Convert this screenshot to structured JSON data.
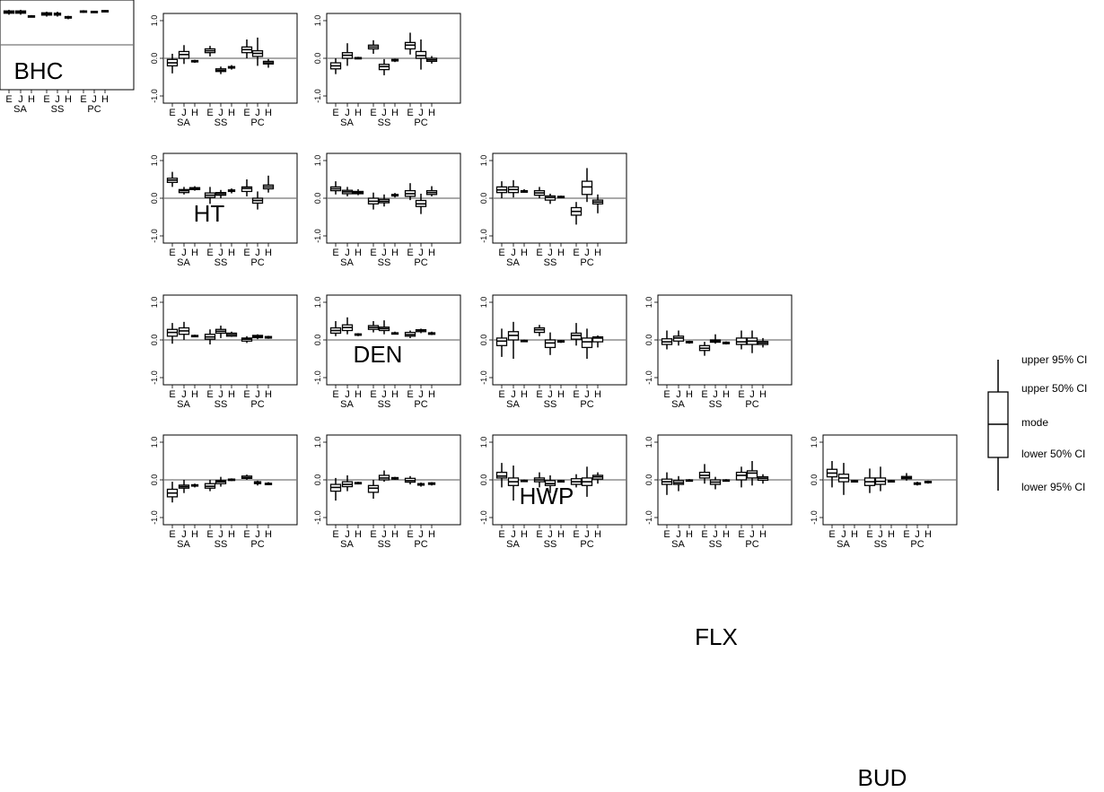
{
  "figure": {
    "traits": [
      "BHC",
      "HT",
      "DEN",
      "HWP",
      "FLX",
      "BUD"
    ],
    "y_tick_labels": [
      "1.0",
      "0.0",
      "-1.0"
    ],
    "class_labels": [
      "E",
      "J",
      "H"
    ],
    "group_labels": [
      "SA",
      "SS",
      "PC"
    ]
  },
  "legend": {
    "labels": [
      "upper 95% CI",
      "upper 50% CI",
      "mode",
      "lower 50% CI",
      "lower 95% CI"
    ]
  },
  "chart_data": {
    "type": "box",
    "title": "",
    "xlabel": "",
    "ylabel": "",
    "ylim": [
      -1.0,
      1.0
    ],
    "yticks": [
      1.0,
      0.0,
      -1.0
    ],
    "reference_line": 0,
    "grid": false,
    "legend_position": "right",
    "categories": [
      "SA E",
      "SA J",
      "SA H",
      "SS E",
      "SS J",
      "SS H",
      "PC E",
      "PC J",
      "PC H"
    ],
    "stat_order": [
      "lower 95% CI",
      "lower 50% CI",
      "mode",
      "upper 50% CI",
      "upper 95% CI"
    ],
    "panels": [
      {
        "row": "BHC",
        "col": "BHC",
        "stats": [
          [
            0.8,
            0.84,
            0.87,
            0.9,
            0.93
          ],
          [
            0.8,
            0.84,
            0.87,
            0.9,
            0.93
          ],
          [
            0.73,
            0.75,
            0.76,
            0.77,
            0.79
          ],
          [
            0.75,
            0.79,
            0.82,
            0.85,
            0.88
          ],
          [
            0.75,
            0.79,
            0.82,
            0.84,
            0.88
          ],
          [
            0.68,
            0.71,
            0.73,
            0.75,
            0.77
          ],
          [
            0.85,
            0.87,
            0.89,
            0.9,
            0.92
          ],
          [
            0.85,
            0.87,
            0.88,
            0.89,
            0.9
          ],
          [
            0.87,
            0.89,
            0.9,
            0.91,
            0.92
          ]
        ]
      },
      {
        "row": "BHC",
        "col": "HT",
        "stats": [
          [
            -0.4,
            -0.2,
            -0.12,
            -0.03,
            0.12
          ],
          [
            -0.15,
            0.0,
            0.1,
            0.18,
            0.35
          ],
          [
            -0.12,
            -0.09,
            -0.08,
            -0.06,
            -0.04
          ],
          [
            0.05,
            0.15,
            0.2,
            0.25,
            0.33
          ],
          [
            -0.42,
            -0.35,
            -0.32,
            -0.28,
            -0.22
          ],
          [
            -0.3,
            -0.26,
            -0.24,
            -0.22,
            -0.18
          ],
          [
            0.0,
            0.15,
            0.23,
            0.3,
            0.5
          ],
          [
            -0.2,
            0.05,
            0.13,
            0.2,
            0.55
          ],
          [
            -0.25,
            -0.15,
            -0.12,
            -0.08,
            -0.02
          ]
        ]
      },
      {
        "row": "BHC",
        "col": "DEN",
        "stats": [
          [
            0.3,
            0.42,
            0.48,
            0.53,
            0.7
          ],
          [
            0.1,
            0.15,
            0.2,
            0.23,
            0.3
          ],
          [
            0.2,
            0.23,
            0.26,
            0.28,
            0.32
          ],
          [
            -0.15,
            0.02,
            0.08,
            0.14,
            0.3
          ],
          [
            0.0,
            0.08,
            0.12,
            0.15,
            0.22
          ],
          [
            0.13,
            0.18,
            0.2,
            0.22,
            0.26
          ],
          [
            0.05,
            0.18,
            0.26,
            0.3,
            0.5
          ],
          [
            -0.3,
            -0.13,
            -0.06,
            0.0,
            0.18
          ],
          [
            0.15,
            0.25,
            0.3,
            0.35,
            0.6
          ]
        ]
      },
      {
        "row": "BHC",
        "col": "HWP",
        "stats": [
          [
            -0.1,
            0.1,
            0.2,
            0.28,
            0.45
          ],
          [
            0.0,
            0.15,
            0.24,
            0.32,
            0.48
          ],
          [
            0.08,
            0.1,
            0.11,
            0.12,
            0.14
          ],
          [
            -0.12,
            0.02,
            0.08,
            0.15,
            0.28
          ],
          [
            0.05,
            0.18,
            0.23,
            0.28,
            0.38
          ],
          [
            0.08,
            0.1,
            0.14,
            0.18,
            0.22
          ],
          [
            -0.08,
            -0.03,
            0.02,
            0.05,
            0.1
          ],
          [
            0.02,
            0.06,
            0.09,
            0.12,
            0.15
          ],
          [
            0.03,
            0.05,
            0.07,
            0.09,
            0.11
          ]
        ]
      },
      {
        "row": "BHC",
        "col": "FLX",
        "stats": [
          [
            -0.6,
            -0.45,
            -0.35,
            -0.25,
            -0.05
          ],
          [
            -0.35,
            -0.22,
            -0.18,
            -0.14,
            0.0
          ],
          [
            -0.2,
            -0.16,
            -0.15,
            -0.13,
            -0.1
          ],
          [
            -0.3,
            -0.22,
            -0.17,
            -0.1,
            0.0
          ],
          [
            -0.18,
            -0.1,
            -0.05,
            -0.02,
            0.08
          ],
          [
            -0.03,
            0.0,
            0.01,
            0.02,
            0.04
          ],
          [
            0.0,
            0.04,
            0.06,
            0.1,
            0.14
          ],
          [
            -0.15,
            -0.1,
            -0.08,
            -0.05,
            -0.02
          ],
          [
            -0.14,
            -0.11,
            -0.1,
            -0.09,
            -0.06
          ]
        ]
      },
      {
        "row": "HT",
        "col": "HT",
        "stats": [
          [
            -0.42,
            -0.28,
            -0.2,
            -0.12,
            0.0
          ],
          [
            -0.2,
            0.0,
            0.08,
            0.15,
            0.4
          ],
          [
            -0.02,
            0.0,
            0.01,
            0.02,
            0.04
          ],
          [
            0.12,
            0.25,
            0.3,
            0.35,
            0.48
          ],
          [
            -0.45,
            -0.3,
            -0.22,
            -0.16,
            -0.02
          ],
          [
            -0.1,
            -0.07,
            -0.05,
            -0.03,
            -0.01
          ],
          [
            0.1,
            0.25,
            0.35,
            0.42,
            0.68
          ],
          [
            -0.3,
            0.0,
            0.07,
            0.18,
            0.5
          ],
          [
            -0.14,
            -0.08,
            -0.04,
            0.0,
            0.06
          ]
        ]
      },
      {
        "row": "HT",
        "col": "DEN",
        "stats": [
          [
            0.1,
            0.2,
            0.25,
            0.3,
            0.45
          ],
          [
            0.05,
            0.12,
            0.17,
            0.21,
            0.3
          ],
          [
            0.08,
            0.12,
            0.15,
            0.18,
            0.24
          ],
          [
            -0.3,
            -0.15,
            -0.08,
            0.0,
            0.15
          ],
          [
            -0.22,
            -0.12,
            -0.08,
            -0.03,
            0.1
          ],
          [
            0.02,
            0.06,
            0.08,
            0.1,
            0.14
          ],
          [
            -0.05,
            0.05,
            0.12,
            0.2,
            0.4
          ],
          [
            -0.42,
            -0.22,
            -0.15,
            -0.06,
            0.12
          ],
          [
            0.05,
            0.1,
            0.15,
            0.2,
            0.32
          ]
        ]
      },
      {
        "row": "HT",
        "col": "HWP",
        "stats": [
          [
            0.1,
            0.18,
            0.25,
            0.32,
            0.5
          ],
          [
            0.15,
            0.25,
            0.33,
            0.4,
            0.6
          ],
          [
            0.1,
            0.13,
            0.15,
            0.16,
            0.18
          ],
          [
            0.2,
            0.28,
            0.33,
            0.38,
            0.5
          ],
          [
            0.15,
            0.25,
            0.3,
            0.34,
            0.52
          ],
          [
            0.15,
            0.17,
            0.18,
            0.19,
            0.22
          ],
          [
            0.05,
            0.1,
            0.14,
            0.2,
            0.25
          ],
          [
            0.18,
            0.22,
            0.25,
            0.27,
            0.3
          ],
          [
            0.13,
            0.15,
            0.17,
            0.19,
            0.22
          ]
        ]
      },
      {
        "row": "HT",
        "col": "FLX",
        "stats": [
          [
            -0.55,
            -0.3,
            -0.2,
            -0.12,
            0.05
          ],
          [
            -0.3,
            -0.18,
            -0.12,
            -0.05,
            0.12
          ],
          [
            -0.12,
            -0.09,
            -0.08,
            -0.07,
            -0.05
          ],
          [
            -0.5,
            -0.33,
            -0.22,
            -0.15,
            0.0
          ],
          [
            -0.05,
            0.0,
            0.05,
            0.12,
            0.25
          ],
          [
            0.0,
            0.02,
            0.04,
            0.06,
            0.08
          ],
          [
            -0.12,
            -0.06,
            -0.02,
            0.04,
            0.1
          ],
          [
            -0.18,
            -0.14,
            -0.12,
            -0.1,
            -0.07
          ],
          [
            -0.15,
            -0.12,
            -0.1,
            -0.08,
            -0.06
          ]
        ]
      },
      {
        "row": "DEN",
        "col": "DEN",
        "stats": [
          [
            0.0,
            0.15,
            0.22,
            0.3,
            0.45
          ],
          [
            0.02,
            0.15,
            0.23,
            0.3,
            0.48
          ],
          [
            0.15,
            0.16,
            0.17,
            0.2,
            0.24
          ],
          [
            0.0,
            0.08,
            0.14,
            0.2,
            0.3
          ],
          [
            -0.15,
            -0.05,
            0.02,
            0.06,
            0.12
          ],
          [
            0.0,
            0.02,
            0.03,
            0.05,
            0.07
          ],
          [
            -0.7,
            -0.45,
            -0.35,
            -0.25,
            -0.1
          ],
          [
            -0.1,
            0.1,
            0.3,
            0.45,
            0.8
          ],
          [
            -0.4,
            -0.15,
            -0.1,
            -0.05,
            0.1
          ]
        ]
      },
      {
        "row": "DEN",
        "col": "HWP",
        "stats": [
          [
            -0.45,
            -0.15,
            -0.03,
            0.05,
            0.3
          ],
          [
            -0.5,
            0.0,
            0.12,
            0.22,
            0.48
          ],
          [
            -0.05,
            -0.03,
            -0.02,
            -0.01,
            0.01
          ],
          [
            0.1,
            0.2,
            0.27,
            0.32,
            0.4
          ],
          [
            -0.4,
            -0.2,
            -0.08,
            0.0,
            0.2
          ],
          [
            -0.08,
            -0.05,
            -0.03,
            -0.02,
            0.0
          ],
          [
            -0.15,
            0.02,
            0.12,
            0.18,
            0.45
          ],
          [
            -0.5,
            -0.2,
            -0.05,
            0.05,
            0.3
          ],
          [
            -0.2,
            -0.05,
            0.05,
            0.08,
            0.12
          ]
        ]
      },
      {
        "row": "DEN",
        "col": "FLX",
        "stats": [
          [
            -0.2,
            0.05,
            0.1,
            0.2,
            0.45
          ],
          [
            -0.55,
            -0.15,
            -0.05,
            0.05,
            0.38
          ],
          [
            -0.06,
            -0.03,
            -0.02,
            -0.01,
            0.01
          ],
          [
            -0.2,
            -0.05,
            0.0,
            0.05,
            0.2
          ],
          [
            -0.35,
            -0.15,
            -0.1,
            -0.02,
            0.12
          ],
          [
            -0.06,
            -0.04,
            -0.03,
            -0.02,
            0.0
          ],
          [
            -0.2,
            -0.12,
            -0.05,
            0.03,
            0.15
          ],
          [
            -0.45,
            -0.15,
            -0.05,
            0.05,
            0.35
          ],
          [
            -0.1,
            0.02,
            0.08,
            0.12,
            0.2
          ]
        ]
      },
      {
        "row": "HWP",
        "col": "HWP",
        "stats": [
          [
            -0.25,
            -0.12,
            -0.05,
            0.03,
            0.25
          ],
          [
            -0.15,
            -0.03,
            0.05,
            0.1,
            0.25
          ],
          [
            -0.1,
            -0.07,
            -0.05,
            -0.04,
            -0.02
          ],
          [
            -0.42,
            -0.28,
            -0.22,
            -0.15,
            -0.05
          ],
          [
            -0.1,
            -0.06,
            -0.03,
            0.0,
            0.15
          ],
          [
            -0.12,
            -0.1,
            -0.08,
            -0.06,
            -0.04
          ],
          [
            -0.25,
            -0.12,
            -0.05,
            0.05,
            0.25
          ],
          [
            -0.35,
            -0.12,
            -0.03,
            0.05,
            0.25
          ],
          [
            -0.2,
            -0.12,
            -0.08,
            -0.04,
            0.05
          ]
        ]
      },
      {
        "row": "HWP",
        "col": "FLX",
        "stats": [
          [
            -0.4,
            -0.12,
            -0.05,
            0.02,
            0.2
          ],
          [
            -0.3,
            -0.12,
            -0.08,
            -0.02,
            0.1
          ],
          [
            -0.04,
            -0.02,
            -0.01,
            0.0,
            0.02
          ],
          [
            -0.1,
            0.05,
            0.12,
            0.2,
            0.42
          ],
          [
            -0.25,
            -0.12,
            -0.06,
            0.0,
            0.08
          ],
          [
            -0.04,
            -0.02,
            -0.01,
            0.0,
            0.02
          ],
          [
            -0.2,
            0.0,
            0.12,
            0.2,
            0.35
          ],
          [
            -0.15,
            0.05,
            0.18,
            0.24,
            0.5
          ],
          [
            -0.1,
            -0.01,
            0.04,
            0.08,
            0.15
          ]
        ]
      },
      {
        "row": "FLX",
        "col": "FLX",
        "stats": [
          [
            -0.2,
            0.08,
            0.18,
            0.28,
            0.5
          ],
          [
            -0.4,
            -0.05,
            0.05,
            0.15,
            0.45
          ],
          [
            -0.06,
            -0.04,
            -0.03,
            -0.02,
            0.0
          ],
          [
            -0.35,
            -0.15,
            -0.05,
            0.05,
            0.3
          ],
          [
            -0.3,
            -0.12,
            -0.04,
            0.05,
            0.35
          ],
          [
            -0.06,
            -0.04,
            -0.03,
            -0.02,
            0.0
          ],
          [
            -0.02,
            0.03,
            0.06,
            0.09,
            0.18
          ],
          [
            -0.15,
            -0.12,
            -0.1,
            -0.08,
            -0.05
          ],
          [
            -0.1,
            -0.07,
            -0.06,
            -0.04,
            -0.02
          ]
        ]
      }
    ]
  }
}
